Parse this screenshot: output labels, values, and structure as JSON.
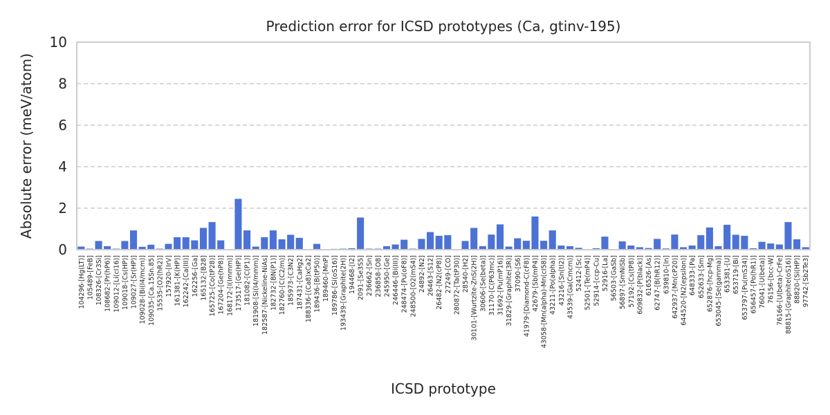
{
  "chart_data": {
    "type": "bar",
    "title": "Prediction error for ICSD prototypes (Ca, gtinv-195)",
    "xlabel": "ICSD prototype",
    "ylabel": "Absolute error (meV/atom)",
    "ylim": [
      0,
      10
    ],
    "yticks": [
      0,
      2,
      4,
      6,
      8,
      10
    ],
    "grid": "y-dashed",
    "bar_color": "#4c72d6",
    "categories": [
      "104296-[Hg(LT)]",
      "105489-[FeB]",
      "108326-[Cr3Si]",
      "108682-[Pr(hP6)]",
      "109012-[Li(cI16)]",
      "109018-[Cs(HP)]",
      "109027-[Sr(HP)]",
      "109028-[Bi(I4/mcm)]",
      "109035-[Ca.15Sn.85]",
      "15535-[O2(hR2)]",
      "157920-[IrV]",
      "161381-[K(HP)]",
      "162242-[Ca(III)]",
      "162256-[Ga]",
      "165132-[B28]",
      "165725-[Co(tP28)]",
      "167204-[Ge(hP8)]",
      "168172-[I(Immm)]",
      "173517-[Ge(HP)]",
      "181082-[C(P1)]",
      "181908-[Si(I4/mmm)]",
      "182587-[Nickeline-NiAs]",
      "182732-[BN(P1)]",
      "182760-[C(C2/m)]",
      "185973-[C3N2]",
      "187431-[CaHg2]",
      "188336-[(Ca8)xCa2]",
      "189436-[B(tP50)]",
      "189460-[MnP]",
      "189786-[Si(oS16)]",
      "193439-[Graphite(2H)]",
      "194468-[I2]",
      "2091-[Se3S5]",
      "236662-[Sn]",
      "236858-[O8]",
      "245950-[Ge]",
      "246446-[Bi(III)]",
      "248474-[Pu(oF8)]",
      "248500-[O2(mS4)]",
      "24892-[N2]",
      "26463-[S12]",
      "26482-[N2(cP8)]",
      "27249-[CO]",
      "280872-[Ta(tP30)]",
      "28540-[H2]",
      "30101-[Wurtzite-ZnS(2H)]",
      "30606-[Se(beta)]",
      "31170-[C(P63mc)]",
      "31692-[Pu(mP16)]",
      "31829-[Graphite(3R)]",
      "37090-[S6]",
      "41979-[Diamond-C(cF8)]",
      "42679-[Sb(mP4)]",
      "43058-[Mn(alpha)-Mn(cI58)]",
      "43211-[Po(alpha)]",
      "43216-[Sn(tI2)]",
      "43539-[Ga(Cmcm)]",
      "52412-[Sc]",
      "52501-[Te(mP4)]",
      "52914-[ccp-Cu]",
      "52916-[La]",
      "56503-[GaSb]",
      "56897-[SmNiSb]",
      "57192-[Cs(tP8)]",
      "609832-[P(black)]",
      "616526-[As]",
      "62747-[B(hR12)]",
      "639810-[In]",
      "642937-[Mn(cP20)]",
      "644520-[N2(epsilon)]",
      "648333-[Pa]",
      "652633-[Sm]",
      "652876-[hcp-Mg]",
      "653045-[Se(gamma)]",
      "653381-[U]",
      "653719-[Bi]",
      "653797-[Pu(mS34)]",
      "656457-[Po(hR1)]",
      "76041-[U(beta)]",
      "76156-[bcc-W]",
      "76166-[U(beta)-CrFe]",
      "88815-[Graphite(oS16)]",
      "88820-[Si(HP)]",
      "97742-[Sb2Te3]"
    ],
    "values": [
      0.15,
      0.05,
      0.42,
      0.17,
      0.05,
      0.42,
      0.93,
      0.14,
      0.24,
      0.05,
      0.28,
      0.6,
      0.6,
      0.45,
      1.05,
      1.33,
      0.45,
      0.03,
      2.45,
      0.93,
      0.15,
      0.6,
      0.93,
      0.5,
      0.72,
      0.57,
      0.03,
      0.28,
      0.03,
      0.04,
      0.05,
      0.07,
      1.55,
      0.05,
      0.05,
      0.17,
      0.25,
      0.48,
      0.05,
      0.52,
      0.85,
      0.67,
      0.7,
      0.03,
      0.42,
      1.05,
      0.17,
      0.73,
      1.22,
      0.15,
      0.55,
      0.43,
      1.6,
      0.43,
      0.93,
      0.2,
      0.17,
      0.09,
      0.03,
      0.07,
      0.63,
      0.03,
      0.4,
      0.2,
      0.12,
      0.08,
      0.52,
      0.06,
      0.73,
      0.12,
      0.2,
      0.7,
      1.07,
      0.17,
      1.2,
      0.72,
      0.67,
      0.07,
      0.38,
      0.3,
      0.25,
      1.33,
      0.5,
      0.12
    ]
  }
}
